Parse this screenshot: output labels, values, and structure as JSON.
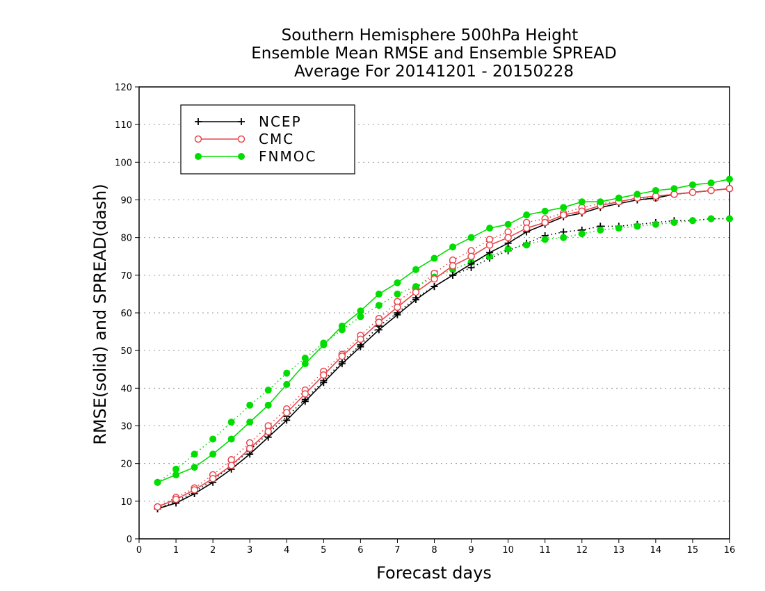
{
  "chart_data": {
    "type": "line",
    "title": [
      "Southern Hemisphere 500hPa Height",
      "Ensemble Mean RMSE and Ensemble SPREAD",
      "Average For 20141201 - 20150228"
    ],
    "xlabel": "Forecast days",
    "ylabel": "RMSE(solid) and SPREAD(dash)",
    "xlim": [
      0,
      16
    ],
    "ylim": [
      0,
      120
    ],
    "xticks": [
      0,
      1,
      2,
      3,
      4,
      5,
      6,
      7,
      8,
      9,
      10,
      11,
      12,
      13,
      14,
      15,
      16
    ],
    "yticks": [
      0,
      10,
      20,
      30,
      40,
      50,
      60,
      70,
      80,
      90,
      100,
      110,
      120
    ],
    "grid": "horizontal dotted",
    "legend_position": "top-left",
    "x": [
      0.5,
      1,
      1.5,
      2,
      2.5,
      3,
      3.5,
      4,
      4.5,
      5,
      5.5,
      6,
      6.5,
      7,
      7.5,
      8,
      8.5,
      9,
      9.5,
      10,
      10.5,
      11,
      11.5,
      12,
      12.5,
      13,
      13.5,
      14,
      14.5,
      15,
      15.5,
      16
    ],
    "series": [
      {
        "name": "NCEP",
        "color": "#000000",
        "marker": "plus",
        "rmse": [
          8,
          9.5,
          12,
          15,
          18.5,
          22.5,
          27,
          31.5,
          36.5,
          41.5,
          46.5,
          51,
          55.5,
          59.5,
          63.5,
          67,
          70,
          73,
          76,
          78.5,
          81.5,
          83.5,
          85.5,
          86.5,
          88,
          89,
          90,
          90.5,
          91.5,
          92,
          92.5,
          93
        ],
        "spread": [
          8,
          10,
          12.5,
          15.5,
          19.5,
          23.5,
          28,
          32.5,
          37,
          42,
          47,
          51.5,
          56.5,
          60,
          64,
          67,
          70,
          72,
          74.5,
          76.5,
          78.5,
          80.5,
          81.5,
          82,
          83,
          83,
          83.5,
          84,
          84.5,
          84.5,
          85,
          85
        ]
      },
      {
        "name": "CMC",
        "color": "#e8454a",
        "marker": "open-circle",
        "rmse": [
          8.5,
          10.5,
          13,
          16,
          19.5,
          24,
          28.5,
          33.5,
          38.5,
          43.5,
          48.5,
          53,
          57.5,
          61.5,
          65.5,
          69,
          72.5,
          75,
          78,
          80,
          82.5,
          84,
          86,
          87,
          88.5,
          89.5,
          90.5,
          91,
          91.5,
          92,
          92.5,
          93
        ],
        "spread": [
          8.5,
          11,
          13.5,
          17,
          21,
          25.5,
          30,
          34.5,
          39.5,
          44.5,
          49,
          54,
          58.5,
          63,
          66.5,
          70.5,
          74,
          76.5,
          79.5,
          81.5,
          84,
          85,
          86.5,
          88,
          89,
          89.5,
          90.5,
          90.5,
          91.5,
          92,
          92.5,
          93
        ]
      },
      {
        "name": "FNMOC",
        "color": "#00dd00",
        "marker": "filled-circle",
        "rmse": [
          15,
          17,
          19,
          22.5,
          26.5,
          31,
          35.5,
          41,
          46.5,
          51.5,
          56.5,
          60.5,
          65,
          68,
          71.5,
          74.5,
          77.5,
          80,
          82.5,
          83.5,
          86,
          87,
          88,
          89.5,
          89.5,
          90.5,
          91.5,
          92.5,
          93,
          94,
          94.5,
          95.5
        ],
        "spread": [
          15,
          18.5,
          22.5,
          26.5,
          31,
          35.5,
          39.5,
          44,
          48,
          52,
          55.5,
          59,
          62,
          65,
          67,
          69.5,
          71.5,
          73.5,
          75,
          77,
          78,
          79.5,
          80,
          81,
          82,
          82.5,
          83,
          83.5,
          84,
          84.5,
          85,
          85
        ]
      }
    ]
  }
}
